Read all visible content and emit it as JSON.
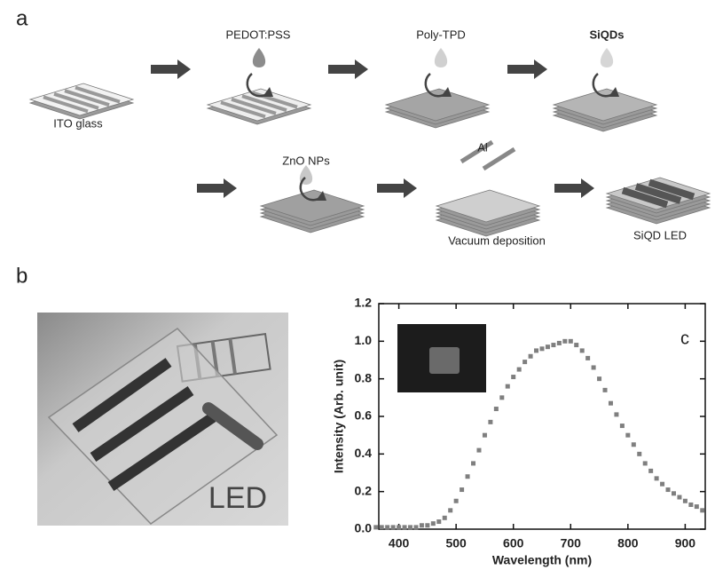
{
  "figure": {
    "panel_a": {
      "label": "a",
      "steps": [
        "ITO glass",
        "PEDOT:PSS",
        "Poly-TPD",
        "SiQDs",
        "ZnO NPs",
        "Al",
        "Vacuum deposition",
        "SiQD LED"
      ]
    },
    "panel_b": {
      "label": "b",
      "photo_label": "LED"
    }
  },
  "chart_data": {
    "type": "scatter",
    "panel_label": "c",
    "xlabel": "Wavelength (nm)",
    "ylabel": "Intensity (Arb. unit)",
    "x": [
      360,
      370,
      380,
      390,
      400,
      410,
      420,
      430,
      440,
      450,
      460,
      470,
      480,
      490,
      500,
      510,
      520,
      530,
      540,
      550,
      560,
      570,
      580,
      590,
      600,
      610,
      620,
      630,
      640,
      650,
      660,
      670,
      680,
      690,
      700,
      710,
      720,
      730,
      740,
      750,
      760,
      770,
      780,
      790,
      800,
      810,
      820,
      830,
      840,
      850,
      860,
      870,
      880,
      890,
      900,
      910,
      920,
      930
    ],
    "series": [
      {
        "color": "#7f7f7f",
        "values": [
          0.01,
          0.01,
          0.01,
          0.01,
          0.01,
          0.01,
          0.01,
          0.01,
          0.02,
          0.02,
          0.03,
          0.04,
          0.06,
          0.1,
          0.15,
          0.21,
          0.28,
          0.35,
          0.42,
          0.5,
          0.57,
          0.64,
          0.7,
          0.76,
          0.81,
          0.85,
          0.89,
          0.92,
          0.95,
          0.96,
          0.97,
          0.98,
          0.99,
          1.0,
          1.0,
          0.98,
          0.95,
          0.91,
          0.86,
          0.8,
          0.74,
          0.67,
          0.61,
          0.55,
          0.5,
          0.45,
          0.4,
          0.35,
          0.31,
          0.27,
          0.24,
          0.21,
          0.19,
          0.17,
          0.15,
          0.13,
          0.12,
          0.1
        ]
      }
    ],
    "xlim": [
      365,
      935
    ],
    "xticks": [
      400,
      500,
      600,
      700,
      800,
      900
    ],
    "ylim": [
      0,
      1.2
    ],
    "yticks": [
      {
        "value": 0,
        "label": "0.0"
      },
      0.2,
      0.4,
      0.6,
      0.8,
      {
        "value": 1,
        "label": "1.0"
      },
      1.2
    ]
  }
}
